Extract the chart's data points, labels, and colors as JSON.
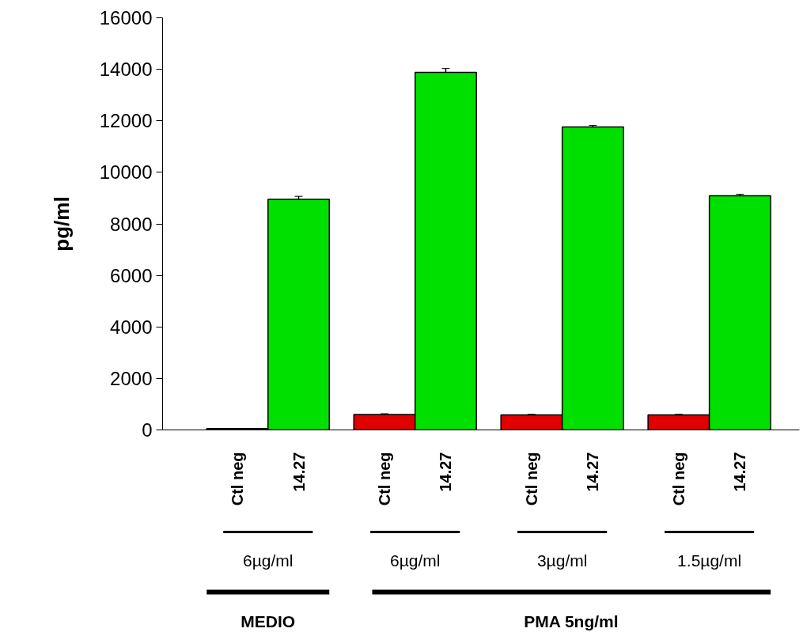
{
  "chart_data": {
    "type": "bar",
    "ylabel": "pg/ml",
    "categories": [
      "Ctl neg",
      "14.27",
      "Ctl neg",
      "14.27",
      "Ctl neg",
      "14.27",
      "Ctl neg",
      "14.27"
    ],
    "values": [
      50,
      8950,
      600,
      13880,
      580,
      11760,
      580,
      9090
    ],
    "errors": [
      null,
      120,
      30,
      150,
      25,
      60,
      25,
      60
    ],
    "colors": [
      "#e00000",
      "#00e000",
      "#e00000",
      "#00e000",
      "#e00000",
      "#00e000",
      "#e00000",
      "#00e000"
    ],
    "ylim": [
      0,
      16000
    ],
    "yticks": [
      0,
      2000,
      4000,
      6000,
      8000,
      10000,
      12000,
      14000,
      16000
    ],
    "grid": false,
    "annotations": [
      "6µg/ml",
      "6µg/ml",
      "3µg/ml",
      "1.5µg/ml",
      "MEDIO",
      "PMA 5ng/ml"
    ]
  }
}
